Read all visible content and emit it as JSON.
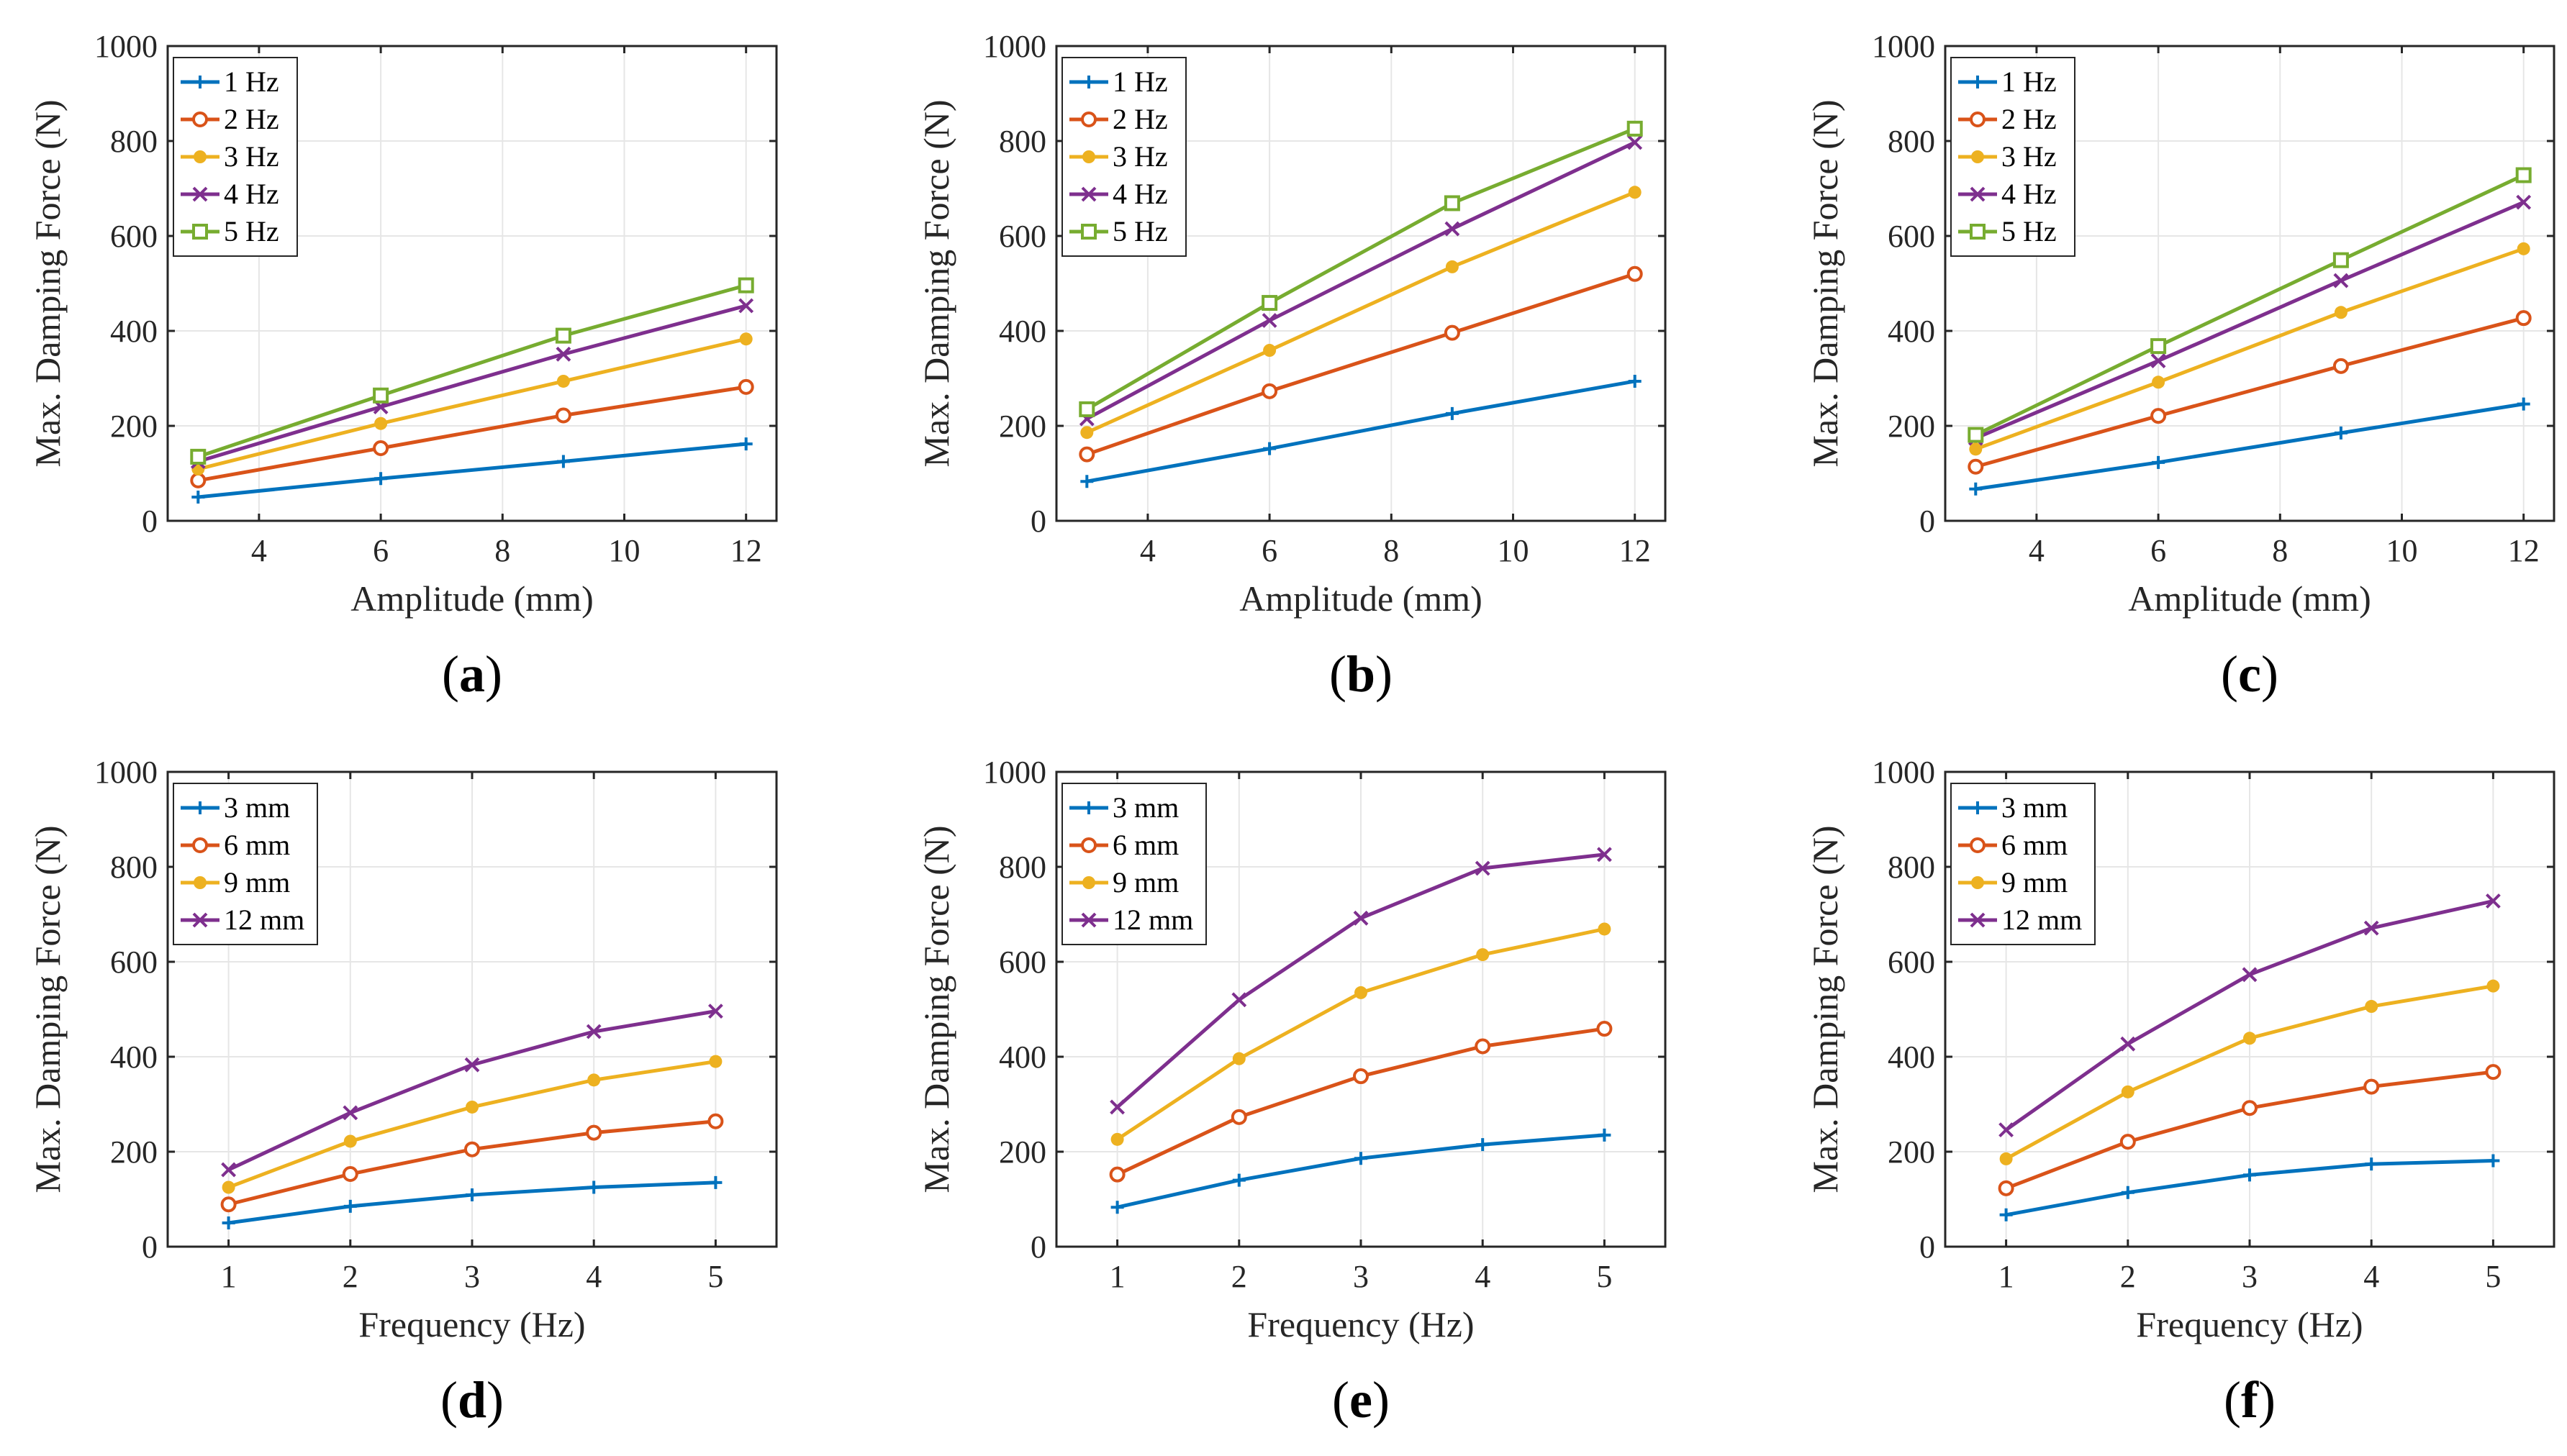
{
  "colors": [
    "#0072BD",
    "#D95319",
    "#EDB120",
    "#7E2F8E",
    "#77AC30"
  ],
  "markers": [
    "plus",
    "circle",
    "diamond",
    "x",
    "square"
  ],
  "chart_data": [
    {
      "type": "line",
      "panel": "a",
      "xlabel": "Amplitude (mm)",
      "ylabel": "Max. Damping Force (N)",
      "xlim": [
        2.5,
        12.5
      ],
      "ylim": [
        0,
        1000
      ],
      "xticks": [
        4,
        6,
        8,
        10,
        12
      ],
      "yticks": [
        0,
        200,
        400,
        600,
        800,
        1000
      ],
      "grid": true,
      "legend": "top-left",
      "x": [
        3,
        6,
        9,
        12
      ],
      "series": [
        {
          "name": "1 Hz",
          "values": [
            50,
            89,
            125,
            162
          ]
        },
        {
          "name": "2 Hz",
          "values": [
            85,
            153,
            222,
            282
          ]
        },
        {
          "name": "3 Hz",
          "values": [
            109,
            205,
            294,
            383
          ]
        },
        {
          "name": "4 Hz",
          "values": [
            125,
            240,
            351,
            453
          ]
        },
        {
          "name": "5 Hz",
          "values": [
            135,
            264,
            390,
            496
          ]
        }
      ]
    },
    {
      "type": "line",
      "panel": "b",
      "xlabel": "Amplitude (mm)",
      "ylabel": "Max. Damping Force (N)",
      "xlim": [
        2.5,
        12.5
      ],
      "ylim": [
        0,
        1000
      ],
      "xticks": [
        4,
        6,
        8,
        10,
        12
      ],
      "yticks": [
        0,
        200,
        400,
        600,
        800,
        1000
      ],
      "grid": true,
      "legend": "top-left",
      "x": [
        3,
        6,
        9,
        12
      ],
      "series": [
        {
          "name": "1 Hz",
          "values": [
            83,
            152,
            226,
            294
          ]
        },
        {
          "name": "2 Hz",
          "values": [
            140,
            273,
            396,
            520
          ]
        },
        {
          "name": "3 Hz",
          "values": [
            186,
            359,
            535,
            692
          ]
        },
        {
          "name": "4 Hz",
          "values": [
            215,
            422,
            615,
            797
          ]
        },
        {
          "name": "5 Hz",
          "values": [
            235,
            459,
            669,
            826
          ]
        }
      ]
    },
    {
      "type": "line",
      "panel": "c",
      "xlabel": "Amplitude (mm)",
      "ylabel": "Max. Damping Force (N)",
      "xlim": [
        2.5,
        12.5
      ],
      "ylim": [
        0,
        1000
      ],
      "xticks": [
        4,
        6,
        8,
        10,
        12
      ],
      "yticks": [
        0,
        200,
        400,
        600,
        800,
        1000
      ],
      "grid": true,
      "legend": "top-left",
      "x": [
        3,
        6,
        9,
        12
      ],
      "series": [
        {
          "name": "1 Hz",
          "values": [
            67,
            123,
            185,
            246
          ]
        },
        {
          "name": "2 Hz",
          "values": [
            114,
            221,
            326,
            427
          ]
        },
        {
          "name": "3 Hz",
          "values": [
            151,
            292,
            439,
            573
          ]
        },
        {
          "name": "4 Hz",
          "values": [
            174,
            337,
            506,
            671
          ]
        },
        {
          "name": "5 Hz",
          "values": [
            181,
            368,
            549,
            728
          ]
        }
      ]
    },
    {
      "type": "line",
      "panel": "d",
      "xlabel": "Frequency (Hz)",
      "ylabel": "Max. Damping Force (N)",
      "xlim": [
        0.5,
        5.5
      ],
      "ylim": [
        0,
        1000
      ],
      "xticks": [
        1,
        2,
        3,
        4,
        5
      ],
      "yticks": [
        0,
        200,
        400,
        600,
        800,
        1000
      ],
      "grid": true,
      "legend": "top-left",
      "x": [
        1,
        2,
        3,
        4,
        5
      ],
      "series": [
        {
          "name": "3 mm",
          "values": [
            50,
            85,
            109,
            125,
            135
          ]
        },
        {
          "name": "6 mm",
          "values": [
            89,
            153,
            205,
            240,
            264
          ]
        },
        {
          "name": "9 mm",
          "values": [
            125,
            222,
            294,
            351,
            390
          ]
        },
        {
          "name": "12 mm",
          "values": [
            162,
            282,
            383,
            453,
            496
          ]
        }
      ]
    },
    {
      "type": "line",
      "panel": "e",
      "xlabel": "Frequency (Hz)",
      "ylabel": "Max. Damping Force (N)",
      "xlim": [
        0.5,
        5.5
      ],
      "ylim": [
        0,
        1000
      ],
      "xticks": [
        1,
        2,
        3,
        4,
        5
      ],
      "yticks": [
        0,
        200,
        400,
        600,
        800,
        1000
      ],
      "grid": true,
      "legend": "top-left",
      "x": [
        1,
        2,
        3,
        4,
        5
      ],
      "series": [
        {
          "name": "3 mm",
          "values": [
            83,
            140,
            186,
            215,
            235
          ]
        },
        {
          "name": "6 mm",
          "values": [
            152,
            273,
            359,
            422,
            459
          ]
        },
        {
          "name": "9 mm",
          "values": [
            226,
            396,
            535,
            615,
            669
          ]
        },
        {
          "name": "12 mm",
          "values": [
            294,
            520,
            692,
            797,
            826
          ]
        }
      ]
    },
    {
      "type": "line",
      "panel": "f",
      "xlabel": "Frequency (Hz)",
      "ylabel": "Max. Damping Force (N)",
      "xlim": [
        0.5,
        5.5
      ],
      "ylim": [
        0,
        1000
      ],
      "xticks": [
        1,
        2,
        3,
        4,
        5
      ],
      "yticks": [
        0,
        200,
        400,
        600,
        800,
        1000
      ],
      "grid": true,
      "legend": "top-left",
      "x": [
        1,
        2,
        3,
        4,
        5
      ],
      "series": [
        {
          "name": "3 mm",
          "values": [
            67,
            114,
            151,
            174,
            181
          ]
        },
        {
          "name": "6 mm",
          "values": [
            123,
            221,
            292,
            337,
            368
          ]
        },
        {
          "name": "9 mm",
          "values": [
            185,
            326,
            439,
            506,
            549
          ]
        },
        {
          "name": "12 mm",
          "values": [
            246,
            427,
            573,
            671,
            728
          ]
        }
      ]
    }
  ]
}
